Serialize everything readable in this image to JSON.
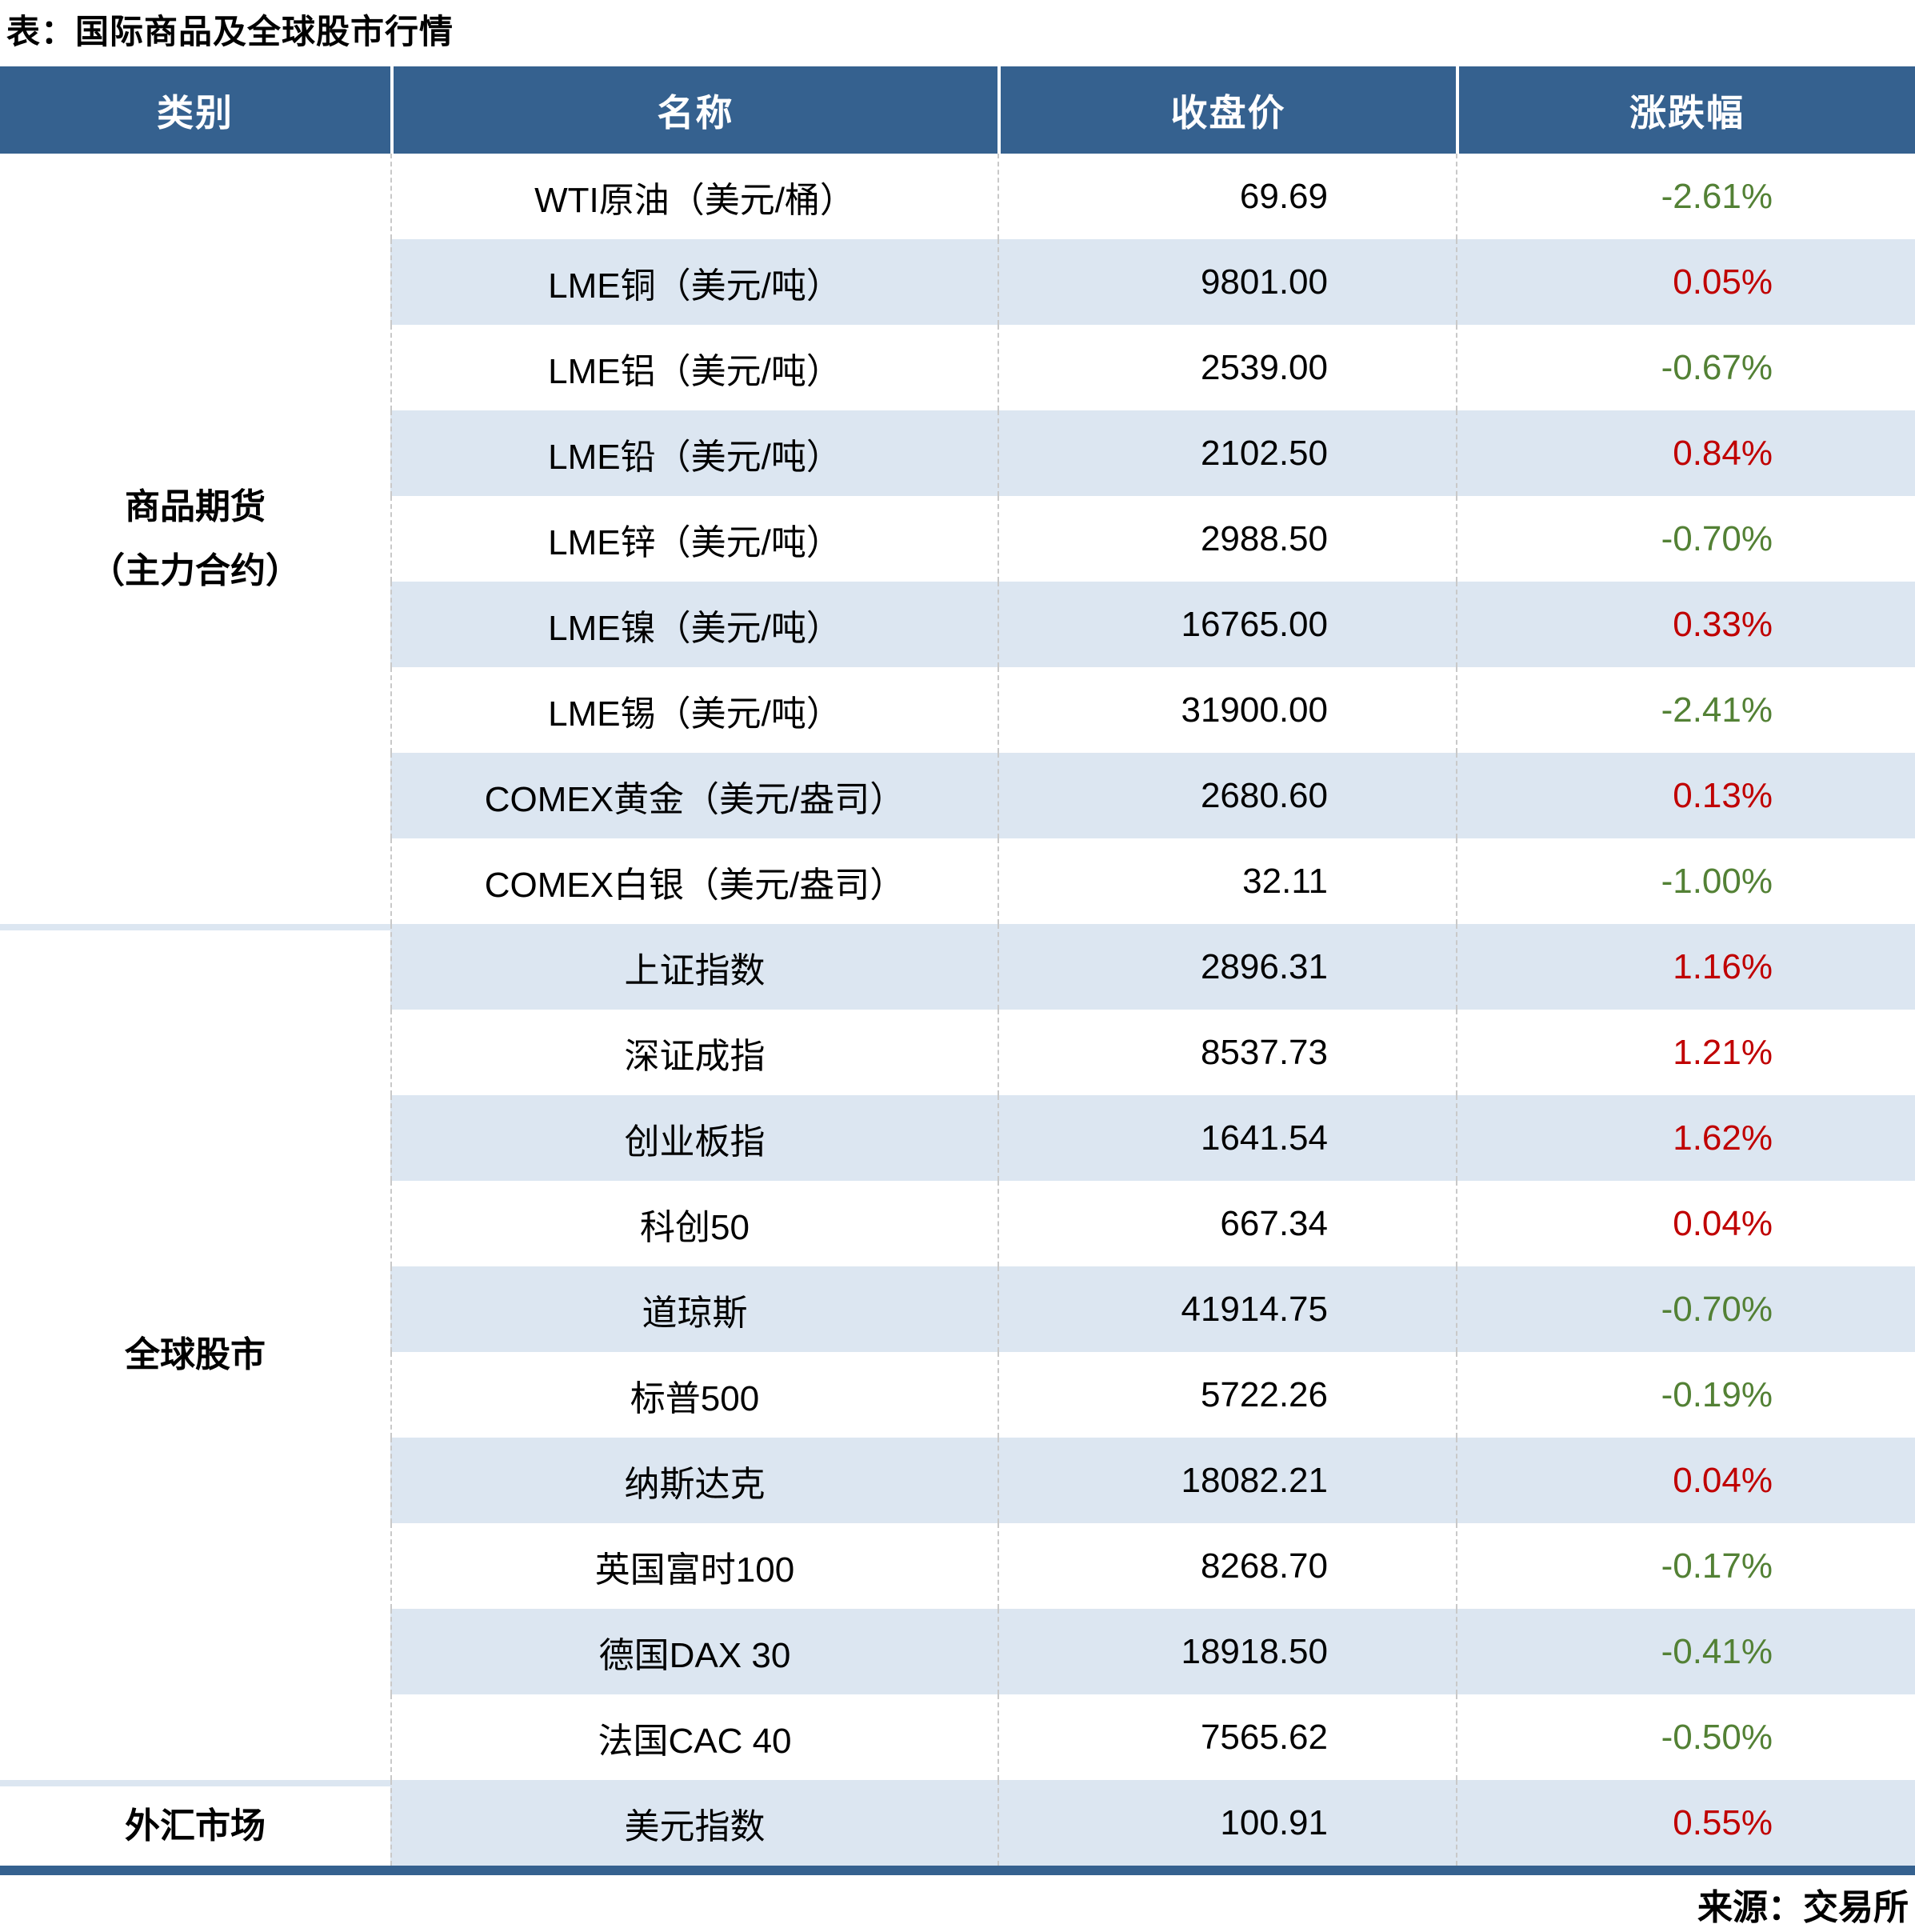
{
  "title": "表：国际商品及全球股市行情",
  "source": "来源：交易所",
  "columns": [
    "类别",
    "名称",
    "收盘价",
    "涨跌幅"
  ],
  "colors": {
    "header_bg": "#35618F",
    "header_text": "#ffffff",
    "stripe": "#DCE6F1",
    "bottom_bar": "#35618F",
    "up": "#C00000",
    "down": "#538135"
  },
  "sections": [
    {
      "category_lines": [
        "商品期货",
        "（主力合约）"
      ],
      "rows": [
        {
          "name": "WTI原油（美元/桶）",
          "close": "69.69",
          "change": "-2.61%",
          "direction": "down"
        },
        {
          "name": "LME铜（美元/吨）",
          "close": "9801.00",
          "change": "0.05%",
          "direction": "up"
        },
        {
          "name": "LME铝（美元/吨）",
          "close": "2539.00",
          "change": "-0.67%",
          "direction": "down"
        },
        {
          "name": "LME铅（美元/吨）",
          "close": "2102.50",
          "change": "0.84%",
          "direction": "up"
        },
        {
          "name": "LME锌（美元/吨）",
          "close": "2988.50",
          "change": "-0.70%",
          "direction": "down"
        },
        {
          "name": "LME镍（美元/吨）",
          "close": "16765.00",
          "change": "0.33%",
          "direction": "up"
        },
        {
          "name": "LME锡（美元/吨）",
          "close": "31900.00",
          "change": "-2.41%",
          "direction": "down"
        },
        {
          "name": "COMEX黄金（美元/盎司）",
          "close": "2680.60",
          "change": "0.13%",
          "direction": "up"
        },
        {
          "name": "COMEX白银（美元/盎司）",
          "close": "32.11",
          "change": "-1.00%",
          "direction": "down"
        }
      ]
    },
    {
      "category_lines": [
        "全球股市"
      ],
      "rows": [
        {
          "name": "上证指数",
          "close": "2896.31",
          "change": "1.16%",
          "direction": "up"
        },
        {
          "name": "深证成指",
          "close": "8537.73",
          "change": "1.21%",
          "direction": "up"
        },
        {
          "name": "创业板指",
          "close": "1641.54",
          "change": "1.62%",
          "direction": "up"
        },
        {
          "name": "科创50",
          "close": "667.34",
          "change": "0.04%",
          "direction": "up"
        },
        {
          "name": "道琼斯",
          "close": "41914.75",
          "change": "-0.70%",
          "direction": "down"
        },
        {
          "name": "标普500",
          "close": "5722.26",
          "change": "-0.19%",
          "direction": "down"
        },
        {
          "name": "纳斯达克",
          "close": "18082.21",
          "change": "0.04%",
          "direction": "up"
        },
        {
          "name": "英国富时100",
          "close": "8268.70",
          "change": "-0.17%",
          "direction": "down"
        },
        {
          "name": "德国DAX 30",
          "close": "18918.50",
          "change": "-0.41%",
          "direction": "down"
        },
        {
          "name": "法国CAC 40",
          "close": "7565.62",
          "change": "-0.50%",
          "direction": "down"
        }
      ]
    },
    {
      "category_lines": [
        "外汇市场"
      ],
      "rows": [
        {
          "name": "美元指数",
          "close": "100.91",
          "change": "0.55%",
          "direction": "up"
        }
      ]
    }
  ],
  "chart_data": {
    "type": "table",
    "title": "表：国际商品及全球股市行情",
    "source": "来源：交易所",
    "columns": [
      "类别",
      "名称",
      "收盘价",
      "涨跌幅"
    ],
    "rows": [
      [
        "商品期货（主力合约）",
        "WTI原油（美元/桶）",
        "69.69",
        "-2.61%"
      ],
      [
        "商品期货（主力合约）",
        "LME铜（美元/吨）",
        "9801.00",
        "0.05%"
      ],
      [
        "商品期货（主力合约）",
        "LME铝（美元/吨）",
        "2539.00",
        "-0.67%"
      ],
      [
        "商品期货（主力合约）",
        "LME铅（美元/吨）",
        "2102.50",
        "0.84%"
      ],
      [
        "商品期货（主力合约）",
        "LME锌（美元/吨）",
        "2988.50",
        "-0.70%"
      ],
      [
        "商品期货（主力合约）",
        "LME镍（美元/吨）",
        "16765.00",
        "0.33%"
      ],
      [
        "商品期货（主力合约）",
        "LME锡（美元/吨）",
        "31900.00",
        "-2.41%"
      ],
      [
        "商品期货（主力合约）",
        "COMEX黄金（美元/盎司）",
        "2680.60",
        "0.13%"
      ],
      [
        "商品期货（主力合约）",
        "COMEX白银（美元/盎司）",
        "32.11",
        "-1.00%"
      ],
      [
        "全球股市",
        "上证指数",
        "2896.31",
        "1.16%"
      ],
      [
        "全球股市",
        "深证成指",
        "8537.73",
        "1.21%"
      ],
      [
        "全球股市",
        "创业板指",
        "1641.54",
        "1.62%"
      ],
      [
        "全球股市",
        "科创50",
        "667.34",
        "0.04%"
      ],
      [
        "全球股市",
        "道琼斯",
        "41914.75",
        "-0.70%"
      ],
      [
        "全球股市",
        "标普500",
        "5722.26",
        "-0.19%"
      ],
      [
        "全球股市",
        "纳斯达克",
        "18082.21",
        "0.04%"
      ],
      [
        "全球股市",
        "英国富时100",
        "8268.70",
        "-0.17%"
      ],
      [
        "全球股市",
        "德国DAX 30",
        "18918.50",
        "-0.41%"
      ],
      [
        "全球股市",
        "法国CAC 40",
        "7565.62",
        "-0.50%"
      ],
      [
        "外汇市场",
        "美元指数",
        "100.91",
        "0.55%"
      ]
    ],
    "notes": "涨跌幅红色=上涨(up), 绿色=下跌(down); 偶数行带浅蓝底纹"
  }
}
